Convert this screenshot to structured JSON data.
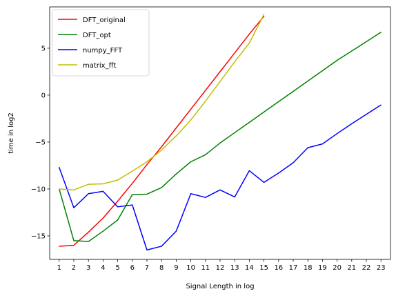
{
  "chart_data": {
    "type": "line",
    "title": "",
    "xlabel": "Signal Length in log",
    "ylabel": "time in log2",
    "xlim": [
      0.35,
      23.65
    ],
    "ylim": [
      -17.5,
      9.4
    ],
    "xticks": [
      1,
      2,
      3,
      4,
      5,
      6,
      7,
      8,
      9,
      10,
      11,
      12,
      13,
      14,
      15,
      16,
      17,
      18,
      19,
      20,
      21,
      22,
      23
    ],
    "yticks": [
      -15,
      -10,
      -5,
      0,
      5
    ],
    "grid": false,
    "legend_position": "upper-left",
    "series": [
      {
        "name": "DFT_original",
        "color": "#ff0000",
        "x": [
          1,
          2,
          3,
          4,
          5,
          6,
          7,
          8,
          9,
          10,
          11,
          12,
          13,
          14,
          15
        ],
        "y": [
          -16.1,
          -16.0,
          -14.6,
          -13.1,
          -11.3,
          -9.4,
          -7.4,
          -5.5,
          -3.5,
          -1.5,
          0.5,
          2.5,
          4.5,
          6.5,
          8.4
        ]
      },
      {
        "name": "DFT_opt",
        "color": "#008000",
        "x": [
          1,
          2,
          3,
          4,
          5,
          6,
          7,
          8,
          9,
          10,
          11,
          12,
          13,
          14,
          15,
          16,
          17,
          18,
          19,
          20,
          21,
          22,
          23
        ],
        "y": [
          -10.0,
          -15.5,
          -15.6,
          -14.5,
          -13.3,
          -10.6,
          -10.55,
          -9.85,
          -8.4,
          -7.1,
          -6.35,
          -5.1,
          -4.0,
          -2.9,
          -1.8,
          -0.7,
          0.4,
          1.5,
          2.6,
          3.7,
          4.7,
          5.7,
          6.7
        ]
      },
      {
        "name": "numpy_FFT",
        "color": "#0000ff",
        "x": [
          1,
          2,
          3,
          4,
          5,
          6,
          7,
          8,
          9,
          10,
          11,
          12,
          13,
          14,
          15,
          16,
          17,
          18,
          19,
          20,
          21,
          22,
          23
        ],
        "y": [
          -7.7,
          -12.0,
          -10.5,
          -10.25,
          -11.9,
          -11.7,
          -16.5,
          -16.1,
          -14.5,
          -10.5,
          -10.9,
          -10.1,
          -10.85,
          -8.05,
          -9.3,
          -8.3,
          -7.2,
          -5.6,
          -5.2,
          -4.1,
          -3.05,
          -2.05,
          -1.05
        ]
      },
      {
        "name": "matrix_fft",
        "color": "#bfbf00",
        "x": [
          1,
          2,
          3,
          4,
          5,
          6,
          7,
          8,
          9,
          10,
          11,
          12,
          13,
          14,
          15
        ],
        "y": [
          -10.0,
          -10.1,
          -9.5,
          -9.45,
          -9.05,
          -8.1,
          -7.1,
          -5.85,
          -4.35,
          -2.65,
          -0.65,
          1.45,
          3.55,
          5.55,
          8.6
        ]
      }
    ]
  }
}
